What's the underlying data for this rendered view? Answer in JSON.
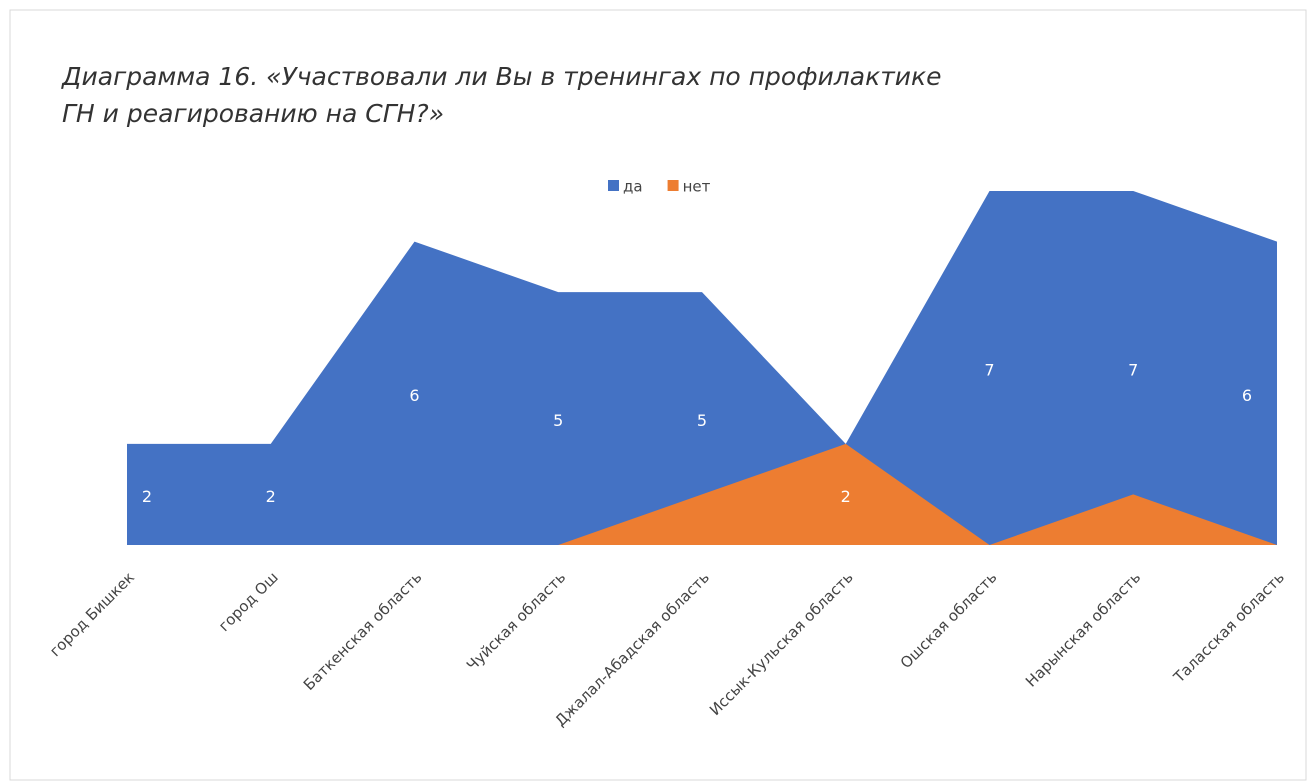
{
  "chart_data": {
    "type": "area",
    "title": [
      "Диаграмма 16. «Участвовали ли Вы в тренингах по профилактике",
      "ГН и реагированию на СГН?»"
    ],
    "categories": [
      "город Бишкек",
      "город Ош",
      "Баткенская область",
      "Чуйская область",
      "Джалал-Абадская область",
      "Иссык-Кульская область",
      "Ошская область",
      "Нарынская область",
      "Таласская область"
    ],
    "series": [
      {
        "name": "да",
        "color": "#4472c4",
        "values": [
          2,
          2,
          6,
          5,
          5,
          2,
          7,
          7,
          6
        ]
      },
      {
        "name": "нет",
        "color": "#ed7d31",
        "values": [
          0,
          0,
          0,
          0,
          1,
          2,
          0,
          1,
          0
        ]
      }
    ],
    "ylim": [
      0,
      7
    ],
    "legend": "top"
  }
}
